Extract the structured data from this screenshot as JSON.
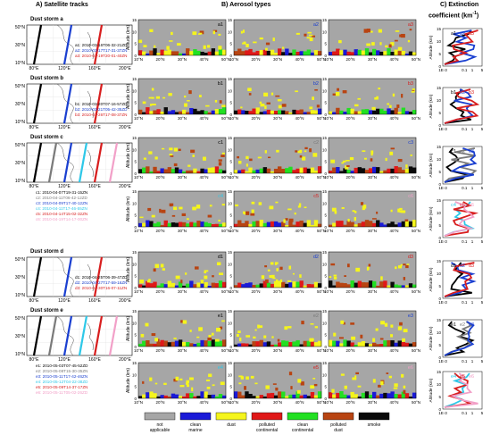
{
  "headers": {
    "a": "A) Satellite tracks",
    "b": "B) Aerosol types",
    "c_line1": "C) Extinction",
    "c_line2": "coefficient (km",
    "c_sup": "-1",
    "c_close": ")"
  },
  "storms": [
    {
      "title": "Dust storm a",
      "tracks": [
        {
          "id": "a1",
          "text": "a1: 2010-03-16T06-32-21ZD",
          "color": "#000000"
        },
        {
          "id": "a2",
          "text": "a2: 2010-03-17T17-31-37ZN",
          "color": "#1a3fd0"
        },
        {
          "id": "a3",
          "text": "a3: 2010-03-19T20-01-40ZN",
          "color": "#d81e1e"
        }
      ]
    },
    {
      "title": "Dust storm b",
      "tracks": [
        {
          "id": "b1",
          "text": "b1: 2010-03-20T07-16-57ZD",
          "color": "#000000"
        },
        {
          "id": "b2",
          "text": "b2: 2010-03-21T05-42-35ZD",
          "color": "#1a3fd0"
        },
        {
          "id": "b3",
          "text": "b3: 2010-03-26T17-08-37ZN",
          "color": "#d81e1e"
        }
      ]
    },
    {
      "title": "Dust storm c",
      "tracks": [
        {
          "id": "c1",
          "text": "c1: 2010-04-07T19-31-15ZN",
          "color": "#000000"
        },
        {
          "id": "c2",
          "text": "c2: 2010-04-11T06-42-12ZD",
          "color": "#7a7a7a"
        },
        {
          "id": "c3",
          "text": "c3: 2010-04-09T17-40-12ZN",
          "color": "#1a3fd0"
        },
        {
          "id": "c4",
          "text": "c4: 2010-04-11T17-46-55ZN",
          "color": "#2ec8e8"
        },
        {
          "id": "c5",
          "text": "c5: 2010-04-14T15-02-32ZN",
          "color": "#d81e1e"
        },
        {
          "id": "c6",
          "text": "c6: 2010-04-19T14-17-00ZN",
          "color": "#f2a0c8"
        }
      ]
    },
    {
      "title": "Dust storm d",
      "tracks": [
        {
          "id": "d1",
          "text": "d1: 2010-04-25T06-39-47ZD",
          "color": "#000000"
        },
        {
          "id": "d2",
          "text": "d2: 2010-04-27T17-59-16ZN",
          "color": "#1a3fd0"
        },
        {
          "id": "d3",
          "text": "d3: 2010-04-30T16-07-11ZN",
          "color": "#d81e1e"
        }
      ]
    },
    {
      "title": "Dust storm e",
      "tracks": [
        {
          "id": "e1",
          "text": "e1: 2010-05-03T07-45-52ZD",
          "color": "#000000"
        },
        {
          "id": "e2",
          "text": "e2: 2010-05-08T15-30-35ZN",
          "color": "#7a7a7a"
        },
        {
          "id": "e3",
          "text": "e3: 2010-05-11T17-42-46ZN",
          "color": "#1a3fd0"
        },
        {
          "id": "e4",
          "text": "e4: 2010-05-12T04-22-38ZD",
          "color": "#2ec8e8"
        },
        {
          "id": "e5",
          "text": "e5: 2010-05-09T14-37-17ZN",
          "color": "#d81e1e"
        },
        {
          "id": "e6",
          "text": "e6: 2010-05-11T05-02-26ZD",
          "color": "#f2a0c8"
        }
      ]
    }
  ],
  "map_axes": {
    "lat_ticks": [
      "50°N",
      "30°N",
      "10°N"
    ],
    "lon_ticks": [
      "80°E",
      "120°E",
      "160°E",
      "200°E"
    ]
  },
  "section_axes": {
    "ylabel": "Altitude (km)",
    "yticks": [
      "0",
      "5",
      "10",
      "15"
    ],
    "xticks": [
      "10°N",
      "20°N",
      "30°N",
      "40°N",
      "50°N"
    ]
  },
  "ext_axes": {
    "ylabel": "Altitude (km)",
    "yticks": [
      "0",
      "5",
      "10",
      "15"
    ],
    "xticks": [
      "1E-3",
      "0.1",
      "1",
      "5"
    ]
  },
  "legend": [
    {
      "label1": "not",
      "label2": "applicable",
      "color": "#a6a6a6"
    },
    {
      "label1": "clean",
      "label2": "marine",
      "color": "#1a1ad8"
    },
    {
      "label1": "dust",
      "label2": "",
      "color": "#f5f51c"
    },
    {
      "label1": "polluted",
      "label2": "continental",
      "color": "#e01818"
    },
    {
      "label1": "clean",
      "label2": "continental",
      "color": "#22e022"
    },
    {
      "label1": "polluted",
      "label2": "dust",
      "color": "#b84412"
    },
    {
      "label1": "smoke",
      "label2": "",
      "color": "#0a0a0a"
    }
  ],
  "colors": {
    "gray": "#a6a6a6",
    "map_line": "#444444"
  }
}
